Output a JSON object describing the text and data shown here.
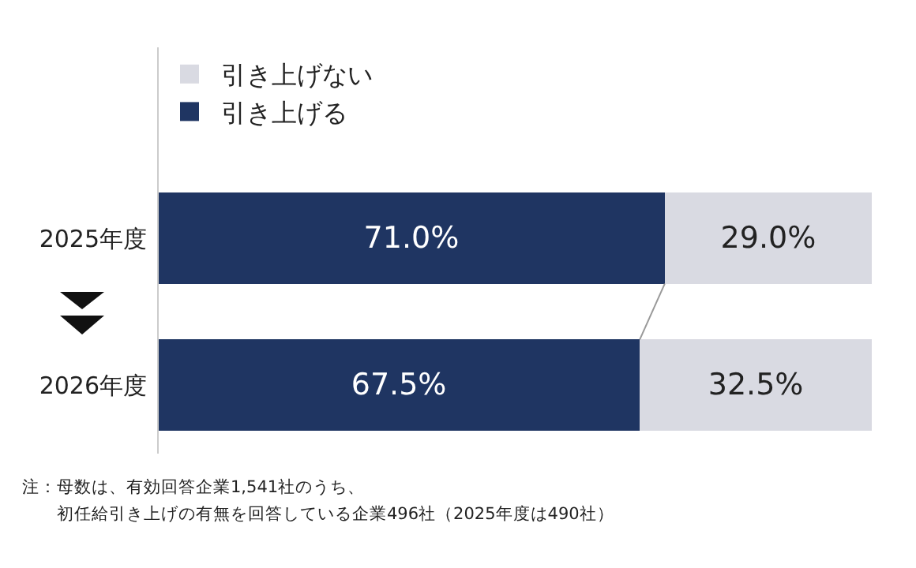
{
  "chart_data": {
    "type": "bar",
    "orientation": "horizontal",
    "stacked": true,
    "categories": [
      "2025年度",
      "2026年度"
    ],
    "series": [
      {
        "name": "引き上げる",
        "color": "#1f3562",
        "values": [
          71.0,
          67.5
        ],
        "value_labels": [
          "71.0%",
          "67.5%"
        ]
      },
      {
        "name": "引き上げない",
        "color": "#d9dae2",
        "values": [
          29.0,
          32.5
        ],
        "value_labels": [
          "29.0%",
          "32.5%"
        ]
      }
    ],
    "xlim": [
      0,
      100
    ],
    "tick_labels": "y",
    "legend": "top",
    "annotations": [
      "注：母数は、有効回答企業1,541社のうち、",
      "初任給引き上げの有無を回答している企業496社（2025年度は490社）"
    ]
  }
}
